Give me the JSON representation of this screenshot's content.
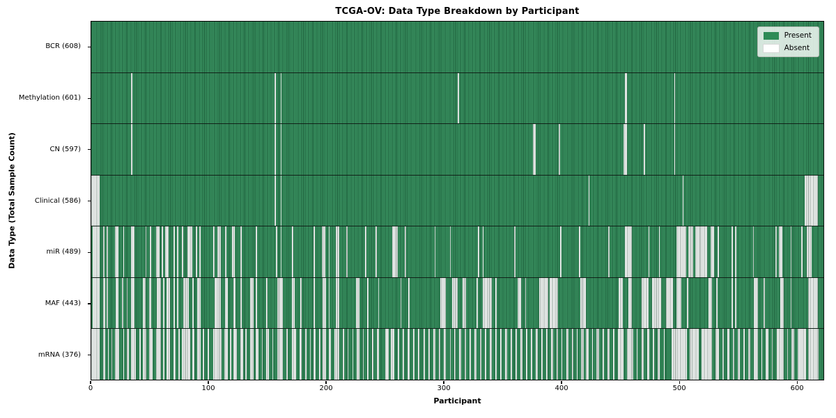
{
  "title": "TCGA-OV: Data Type Breakdown by Participant",
  "x_axis": {
    "label": "Participant",
    "ticks": [
      0,
      100,
      200,
      300,
      400,
      500,
      600
    ]
  },
  "y_axis": {
    "label": "Data Type (Total Sample Count)"
  },
  "legend": {
    "items": [
      {
        "label": "Present"
      },
      {
        "label": "Absent"
      }
    ]
  },
  "colors": {
    "present": "#2e8b57",
    "absent": "#ffffff",
    "bar_edge": "#16revised",
    "edge_line": "#0a2a1a"
  },
  "chart_data": {
    "type": "heatmap",
    "title": "TCGA-OV: Data Type Breakdown by Participant",
    "xlabel": "Participant",
    "ylabel": "Data Type (Total Sample Count)",
    "x_range": [
      0,
      623
    ],
    "x_ticks": [
      0,
      100,
      200,
      300,
      400,
      500,
      600
    ],
    "legend": [
      "Present",
      "Absent"
    ],
    "legend_position": "upper right",
    "cell_states": {
      "present_color": "#2e8b57",
      "absent_color": "#ffffff"
    },
    "rows": [
      {
        "key": "bcr",
        "data_type": "BCR",
        "label": "BCR (608)",
        "present_count": 608,
        "absent_segments": []
      },
      {
        "key": "methylation",
        "data_type": "Methylation",
        "label": "Methylation (601)",
        "present_count": 601,
        "absent_segments": [
          [
            34,
            34
          ],
          [
            156,
            156
          ],
          [
            161,
            161
          ],
          [
            312,
            312
          ],
          [
            454,
            455
          ],
          [
            496,
            496
          ]
        ]
      },
      {
        "key": "cn",
        "data_type": "CN",
        "label": "CN (597)",
        "present_count": 597,
        "absent_segments": [
          [
            34,
            34
          ],
          [
            156,
            156
          ],
          [
            161,
            161
          ],
          [
            376,
            377
          ],
          [
            398,
            398
          ],
          [
            453,
            455
          ],
          [
            470,
            470
          ],
          [
            496,
            496
          ]
        ]
      },
      {
        "key": "clinical",
        "data_type": "Clinical",
        "label": "Clinical (586)",
        "present_count": 586,
        "absent_segments": [
          [
            0,
            6
          ],
          [
            156,
            156
          ],
          [
            161,
            161
          ],
          [
            423,
            423
          ],
          [
            503,
            503
          ],
          [
            607,
            617
          ]
        ]
      },
      {
        "key": "mir",
        "data_type": "miR",
        "label": "miR (489)",
        "present_count": 489,
        "absent_segments": [
          [
            1,
            6
          ],
          [
            10,
            10
          ],
          [
            13,
            13
          ],
          [
            20,
            22
          ],
          [
            27,
            27
          ],
          [
            34,
            36
          ],
          [
            46,
            46
          ],
          [
            50,
            50
          ],
          [
            55,
            57
          ],
          [
            60,
            60
          ],
          [
            63,
            65
          ],
          [
            70,
            70
          ],
          [
            73,
            73
          ],
          [
            77,
            77
          ],
          [
            82,
            85
          ],
          [
            89,
            89
          ],
          [
            92,
            92
          ],
          [
            104,
            104
          ],
          [
            107,
            109
          ],
          [
            114,
            114
          ],
          [
            120,
            121
          ],
          [
            127,
            127
          ],
          [
            140,
            140
          ],
          [
            157,
            157
          ],
          [
            161,
            161
          ],
          [
            171,
            171
          ],
          [
            189,
            189
          ],
          [
            196,
            198
          ],
          [
            202,
            202
          ],
          [
            208,
            210
          ],
          [
            217,
            217
          ],
          [
            233,
            233
          ],
          [
            242,
            242
          ],
          [
            256,
            260
          ],
          [
            267,
            267
          ],
          [
            292,
            292
          ],
          [
            305,
            305
          ],
          [
            329,
            329
          ],
          [
            333,
            333
          ],
          [
            360,
            360
          ],
          [
            399,
            399
          ],
          [
            415,
            415
          ],
          [
            440,
            440
          ],
          [
            454,
            459
          ],
          [
            474,
            474
          ],
          [
            483,
            483
          ],
          [
            498,
            505
          ],
          [
            508,
            511
          ],
          [
            514,
            523
          ],
          [
            527,
            529
          ],
          [
            533,
            533
          ],
          [
            545,
            545
          ],
          [
            548,
            548
          ],
          [
            563,
            563
          ],
          [
            582,
            582
          ],
          [
            585,
            587
          ],
          [
            595,
            595
          ],
          [
            604,
            604
          ],
          [
            609,
            612
          ]
        ]
      },
      {
        "key": "maf",
        "data_type": "MAF",
        "label": "MAF (443)",
        "present_count": 443,
        "absent_segments": [
          [
            1,
            6
          ],
          [
            10,
            11
          ],
          [
            13,
            13
          ],
          [
            21,
            22
          ],
          [
            26,
            26
          ],
          [
            30,
            30
          ],
          [
            34,
            36
          ],
          [
            44,
            45
          ],
          [
            49,
            50
          ],
          [
            56,
            58
          ],
          [
            61,
            61
          ],
          [
            64,
            66
          ],
          [
            70,
            70
          ],
          [
            73,
            73
          ],
          [
            78,
            82
          ],
          [
            86,
            86
          ],
          [
            90,
            92
          ],
          [
            105,
            109
          ],
          [
            114,
            115
          ],
          [
            121,
            122
          ],
          [
            127,
            127
          ],
          [
            135,
            137
          ],
          [
            140,
            140
          ],
          [
            149,
            149
          ],
          [
            158,
            162
          ],
          [
            171,
            172
          ],
          [
            178,
            178
          ],
          [
            189,
            189
          ],
          [
            197,
            199
          ],
          [
            202,
            202
          ],
          [
            208,
            210
          ],
          [
            225,
            227
          ],
          [
            235,
            235
          ],
          [
            244,
            244
          ],
          [
            263,
            263
          ],
          [
            270,
            270
          ],
          [
            297,
            301
          ],
          [
            307,
            311
          ],
          [
            316,
            318
          ],
          [
            328,
            328
          ],
          [
            333,
            340
          ],
          [
            344,
            344
          ],
          [
            363,
            365
          ],
          [
            369,
            369
          ],
          [
            381,
            388
          ],
          [
            390,
            396
          ],
          [
            416,
            420
          ],
          [
            449,
            451
          ],
          [
            457,
            459
          ],
          [
            468,
            473
          ],
          [
            477,
            484
          ],
          [
            489,
            494
          ],
          [
            498,
            501
          ],
          [
            507,
            507
          ],
          [
            525,
            527
          ],
          [
            532,
            532
          ],
          [
            545,
            545
          ],
          [
            548,
            548
          ],
          [
            564,
            566
          ],
          [
            572,
            572
          ],
          [
            586,
            588
          ],
          [
            595,
            595
          ],
          [
            610,
            617
          ]
        ]
      },
      {
        "key": "mrna",
        "data_type": "mRNA",
        "label": "mRNA (376)",
        "present_count": 376,
        "absent_segments": [
          [
            0,
            6
          ],
          [
            10,
            11
          ],
          [
            14,
            14
          ],
          [
            17,
            17
          ],
          [
            20,
            23
          ],
          [
            27,
            27
          ],
          [
            30,
            31
          ],
          [
            34,
            37
          ],
          [
            41,
            41
          ],
          [
            44,
            46
          ],
          [
            49,
            51
          ],
          [
            55,
            58
          ],
          [
            61,
            61
          ],
          [
            64,
            66
          ],
          [
            70,
            71
          ],
          [
            74,
            74
          ],
          [
            77,
            83
          ],
          [
            86,
            87
          ],
          [
            90,
            92
          ],
          [
            95,
            95
          ],
          [
            99,
            99
          ],
          [
            104,
            110
          ],
          [
            113,
            115
          ],
          [
            118,
            118
          ],
          [
            121,
            123
          ],
          [
            127,
            128
          ],
          [
            131,
            131
          ],
          [
            135,
            137
          ],
          [
            140,
            141
          ],
          [
            145,
            145
          ],
          [
            149,
            150
          ],
          [
            154,
            154
          ],
          [
            158,
            162
          ],
          [
            166,
            166
          ],
          [
            171,
            173
          ],
          [
            177,
            178
          ],
          [
            182,
            182
          ],
          [
            186,
            186
          ],
          [
            189,
            190
          ],
          [
            194,
            194
          ],
          [
            197,
            199
          ],
          [
            202,
            203
          ],
          [
            207,
            210
          ],
          [
            214,
            214
          ],
          [
            218,
            218
          ],
          [
            222,
            222
          ],
          [
            226,
            227
          ],
          [
            231,
            231
          ],
          [
            235,
            235
          ],
          [
            239,
            239
          ],
          [
            243,
            244
          ],
          [
            250,
            252
          ],
          [
            255,
            257
          ],
          [
            261,
            261
          ],
          [
            265,
            265
          ],
          [
            269,
            270
          ],
          [
            274,
            274
          ],
          [
            278,
            278
          ],
          [
            283,
            283
          ],
          [
            287,
            287
          ],
          [
            291,
            292
          ],
          [
            296,
            296
          ],
          [
            300,
            301
          ],
          [
            305,
            305
          ],
          [
            309,
            309
          ],
          [
            313,
            314
          ],
          [
            318,
            318
          ],
          [
            322,
            322
          ],
          [
            326,
            327
          ],
          [
            331,
            331
          ],
          [
            335,
            335
          ],
          [
            339,
            340
          ],
          [
            344,
            344
          ],
          [
            348,
            348
          ],
          [
            352,
            353
          ],
          [
            357,
            357
          ],
          [
            361,
            361
          ],
          [
            365,
            366
          ],
          [
            370,
            370
          ],
          [
            374,
            374
          ],
          [
            378,
            379
          ],
          [
            383,
            383
          ],
          [
            387,
            387
          ],
          [
            391,
            392
          ],
          [
            396,
            396
          ],
          [
            400,
            400
          ],
          [
            404,
            405
          ],
          [
            409,
            409
          ],
          [
            413,
            413
          ],
          [
            417,
            418
          ],
          [
            421,
            422
          ],
          [
            426,
            426
          ],
          [
            430,
            431
          ],
          [
            435,
            435
          ],
          [
            439,
            440
          ],
          [
            444,
            444
          ],
          [
            448,
            452
          ],
          [
            456,
            460
          ],
          [
            464,
            464
          ],
          [
            468,
            469
          ],
          [
            473,
            474
          ],
          [
            478,
            478
          ],
          [
            482,
            483
          ],
          [
            487,
            487
          ],
          [
            494,
            506
          ],
          [
            509,
            516
          ],
          [
            519,
            527
          ],
          [
            531,
            533
          ],
          [
            537,
            537
          ],
          [
            541,
            542
          ],
          [
            546,
            546
          ],
          [
            550,
            551
          ],
          [
            555,
            555
          ],
          [
            559,
            560
          ],
          [
            564,
            566
          ],
          [
            570,
            570
          ],
          [
            574,
            575
          ],
          [
            579,
            579
          ],
          [
            583,
            588
          ],
          [
            592,
            592
          ],
          [
            596,
            597
          ],
          [
            601,
            607
          ],
          [
            610,
            618
          ]
        ]
      }
    ]
  }
}
